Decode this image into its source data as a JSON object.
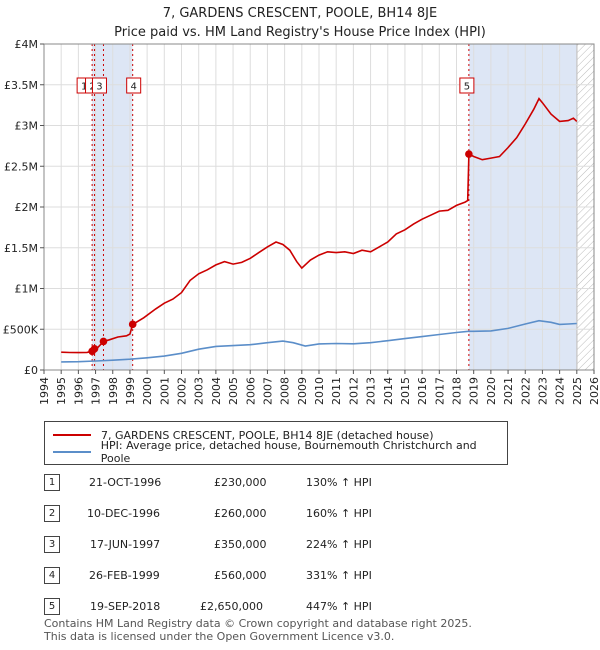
{
  "title_line1": "7, GARDENS CRESCENT, POOLE, BH14 8JE",
  "title_line2": "Price paid vs. HM Land Registry's House Price Index (HPI)",
  "colors": {
    "property": "#cc0000",
    "hpi": "#5b8ec9",
    "shade": "#dde6f5",
    "grid": "#dddddd"
  },
  "chart_data": {
    "type": "line",
    "title": "7, GARDENS CRESCENT, POOLE, BH14 8JE — Price paid vs. HM Land Registry's House Price Index (HPI)",
    "xlabel": "",
    "ylabel": "",
    "xlim": [
      1994,
      2026
    ],
    "ylim": [
      0,
      4000000
    ],
    "x_ticks": [
      1994,
      1995,
      1996,
      1997,
      1998,
      1999,
      2000,
      2001,
      2002,
      2003,
      2004,
      2005,
      2006,
      2007,
      2008,
      2009,
      2010,
      2011,
      2012,
      2013,
      2014,
      2015,
      2016,
      2017,
      2018,
      2019,
      2020,
      2021,
      2022,
      2023,
      2024,
      2025,
      2026
    ],
    "y_ticks": [
      {
        "value": 0,
        "label": "£0"
      },
      {
        "value": 500000,
        "label": "£500K"
      },
      {
        "value": 1000000,
        "label": "£1M"
      },
      {
        "value": 1500000,
        "label": "£1.5M"
      },
      {
        "value": 2000000,
        "label": "£2M"
      },
      {
        "value": 2500000,
        "label": "£2.5M"
      },
      {
        "value": 3000000,
        "label": "£3M"
      },
      {
        "value": 3500000,
        "label": "£3.5M"
      },
      {
        "value": 4000000,
        "label": "£4M"
      }
    ],
    "grid": true,
    "shaded_ranges": [
      [
        1996.8,
        1999.15
      ],
      [
        2018.72,
        2025.0
      ]
    ],
    "hatched_range": [
      2025.0,
      2026
    ],
    "series": [
      {
        "name": "7, GARDENS CRESCENT, POOLE, BH14 8JE (detached house)",
        "color": "#cc0000",
        "points": [
          [
            1995.0,
            218000
          ],
          [
            1995.5,
            215000
          ],
          [
            1996.0,
            213000
          ],
          [
            1996.5,
            216000
          ],
          [
            1996.8,
            230000
          ],
          [
            1996.94,
            260000
          ],
          [
            1997.1,
            270000
          ],
          [
            1997.46,
            350000
          ],
          [
            1997.8,
            370000
          ],
          [
            1998.3,
            405000
          ],
          [
            1998.8,
            420000
          ],
          [
            1999.0,
            440000
          ],
          [
            1999.16,
            560000
          ],
          [
            1999.8,
            640000
          ],
          [
            2000.5,
            750000
          ],
          [
            2001.0,
            820000
          ],
          [
            2001.5,
            870000
          ],
          [
            2002.0,
            950000
          ],
          [
            2002.5,
            1100000
          ],
          [
            2003.0,
            1180000
          ],
          [
            2003.5,
            1230000
          ],
          [
            2004.0,
            1290000
          ],
          [
            2004.5,
            1330000
          ],
          [
            2005.0,
            1300000
          ],
          [
            2005.5,
            1320000
          ],
          [
            2006.0,
            1370000
          ],
          [
            2006.5,
            1440000
          ],
          [
            2007.0,
            1510000
          ],
          [
            2007.5,
            1570000
          ],
          [
            2007.9,
            1540000
          ],
          [
            2008.3,
            1470000
          ],
          [
            2008.7,
            1330000
          ],
          [
            2009.0,
            1250000
          ],
          [
            2009.5,
            1350000
          ],
          [
            2010.0,
            1410000
          ],
          [
            2010.5,
            1450000
          ],
          [
            2011.0,
            1440000
          ],
          [
            2011.5,
            1450000
          ],
          [
            2012.0,
            1430000
          ],
          [
            2012.5,
            1470000
          ],
          [
            2013.0,
            1450000
          ],
          [
            2013.5,
            1510000
          ],
          [
            2014.0,
            1570000
          ],
          [
            2014.5,
            1670000
          ],
          [
            2015.0,
            1720000
          ],
          [
            2015.5,
            1790000
          ],
          [
            2016.0,
            1850000
          ],
          [
            2016.5,
            1900000
          ],
          [
            2017.0,
            1950000
          ],
          [
            2017.5,
            1960000
          ],
          [
            2018.0,
            2020000
          ],
          [
            2018.5,
            2060000
          ],
          [
            2018.65,
            2080000
          ],
          [
            2018.72,
            2650000
          ],
          [
            2019.0,
            2620000
          ],
          [
            2019.5,
            2580000
          ],
          [
            2020.0,
            2600000
          ],
          [
            2020.5,
            2620000
          ],
          [
            2021.0,
            2730000
          ],
          [
            2021.5,
            2850000
          ],
          [
            2022.0,
            3020000
          ],
          [
            2022.5,
            3200000
          ],
          [
            2022.8,
            3330000
          ],
          [
            2023.0,
            3280000
          ],
          [
            2023.5,
            3140000
          ],
          [
            2024.0,
            3050000
          ],
          [
            2024.5,
            3060000
          ],
          [
            2024.8,
            3090000
          ],
          [
            2025.0,
            3050000
          ]
        ]
      },
      {
        "name": "HPI: Average price, detached house, Bournemouth Christchurch and Poole",
        "color": "#5b8ec9",
        "points": [
          [
            1995.0,
            100000
          ],
          [
            1996.0,
            102000
          ],
          [
            1997.0,
            110000
          ],
          [
            1998.0,
            120000
          ],
          [
            1999.0,
            132000
          ],
          [
            2000.0,
            150000
          ],
          [
            2001.0,
            170000
          ],
          [
            2002.0,
            205000
          ],
          [
            2003.0,
            255000
          ],
          [
            2004.0,
            290000
          ],
          [
            2005.0,
            300000
          ],
          [
            2006.0,
            310000
          ],
          [
            2007.0,
            335000
          ],
          [
            2007.9,
            355000
          ],
          [
            2008.5,
            335000
          ],
          [
            2009.2,
            295000
          ],
          [
            2010.0,
            320000
          ],
          [
            2011.0,
            325000
          ],
          [
            2012.0,
            322000
          ],
          [
            2013.0,
            335000
          ],
          [
            2014.0,
            360000
          ],
          [
            2015.0,
            385000
          ],
          [
            2016.0,
            410000
          ],
          [
            2017.0,
            435000
          ],
          [
            2018.0,
            460000
          ],
          [
            2018.7,
            475000
          ],
          [
            2019.0,
            475000
          ],
          [
            2020.0,
            480000
          ],
          [
            2021.0,
            510000
          ],
          [
            2022.0,
            565000
          ],
          [
            2022.8,
            605000
          ],
          [
            2023.5,
            585000
          ],
          [
            2024.0,
            560000
          ],
          [
            2024.5,
            565000
          ],
          [
            2025.0,
            570000
          ]
        ]
      }
    ],
    "sales": [
      {
        "id": "1",
        "x": 1996.8,
        "value": 230000,
        "date": "21-OCT-1996",
        "price": "£230,000",
        "hpi": "130% ↑ HPI"
      },
      {
        "id": "2",
        "x": 1996.94,
        "value": 260000,
        "date": "10-DEC-1996",
        "price": "£260,000",
        "hpi": "160% ↑ HPI"
      },
      {
        "id": "3",
        "x": 1997.46,
        "value": 350000,
        "date": "17-JUN-1997",
        "price": "£350,000",
        "hpi": "224% ↑ HPI"
      },
      {
        "id": "4",
        "x": 1999.16,
        "value": 560000,
        "date": "26-FEB-1999",
        "price": "£560,000",
        "hpi": "331% ↑ HPI"
      },
      {
        "id": "5",
        "x": 2018.72,
        "value": 2650000,
        "date": "19-SEP-2018",
        "price": "£2,650,000",
        "hpi": "447% ↑ HPI"
      }
    ]
  },
  "legend": {
    "property_label": "7, GARDENS CRESCENT, POOLE, BH14 8JE (detached house)",
    "hpi_label": "HPI: Average price, detached house, Bournemouth Christchurch and Poole"
  },
  "footer": {
    "line1": "Contains HM Land Registry data © Crown copyright and database right 2025.",
    "line2": "This data is licensed under the Open Government Licence v3.0."
  }
}
